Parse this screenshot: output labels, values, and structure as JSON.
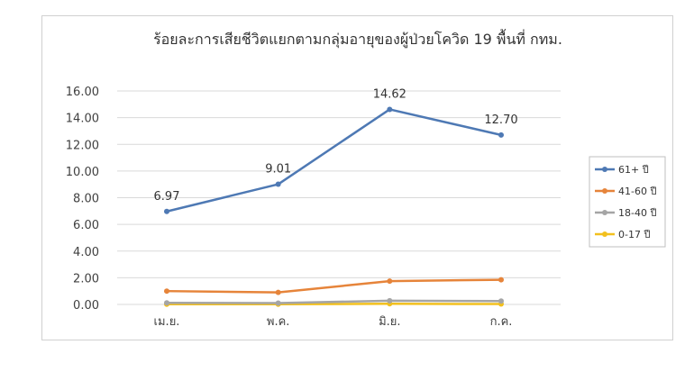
{
  "chart_data": {
    "type": "line",
    "title": "ร้อยละการเสียชีวิตแยกตามกลุ่มอายุของผู้ป่วยโควิด 19 พื้นที่ กทม.",
    "categories": [
      "เม.ย.",
      "พ.ค.",
      "มิ.ย.",
      "ก.ค."
    ],
    "y_ticks": [
      "0.00",
      "2.00",
      "4.00",
      "6.00",
      "8.00",
      "10.00",
      "12.00",
      "14.00",
      "16.00"
    ],
    "ylim": [
      0,
      16
    ],
    "grid": true,
    "legend_position": "right",
    "series": [
      {
        "name": "61+ ปี",
        "color": "#4e79b4",
        "values": [
          6.97,
          9.01,
          14.62,
          12.7
        ],
        "labels": [
          "6.97",
          "9.01",
          "14.62",
          "12.70"
        ]
      },
      {
        "name": "41-60 ปี",
        "color": "#e6843a",
        "values": [
          1.0,
          0.9,
          1.75,
          1.85
        ]
      },
      {
        "name": "18-40 ปี",
        "color": "#a5a5a5",
        "values": [
          0.12,
          0.1,
          0.28,
          0.25
        ]
      },
      {
        "name": "0-17 ปี",
        "color": "#f2c01e",
        "values": [
          0.02,
          0.02,
          0.05,
          0.03
        ]
      }
    ]
  }
}
